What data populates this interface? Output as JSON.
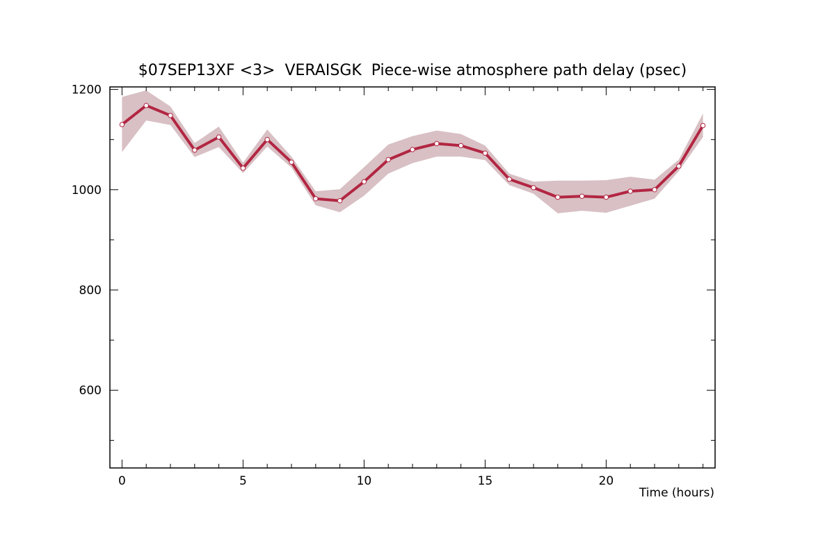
{
  "chart_data": {
    "type": "line",
    "title": "$07SEP13XF <3>  VERAISGK  Piece-wise atmosphere path delay (psec)",
    "xlabel": "Time (hours)",
    "ylabel": "",
    "xlim": [
      -0.5,
      24.5
    ],
    "ylim": [
      445,
      1205
    ],
    "x_ticks": [
      0,
      5,
      10,
      15,
      20
    ],
    "y_ticks": [
      600,
      800,
      1000,
      1200
    ],
    "x_minor_step": 1,
    "y_minor_step": 100,
    "grid": false,
    "colors": {
      "line": "#b22642",
      "band": "#d8c0c4",
      "marker_fill": "#ffffff"
    },
    "series": [
      {
        "x": [
          0,
          1,
          2,
          3,
          4,
          5,
          6,
          7,
          8,
          9,
          10,
          11,
          12,
          13,
          14,
          15,
          16,
          17,
          18,
          19,
          20,
          21,
          22,
          23,
          24
        ],
        "y": [
          1130,
          1168,
          1148,
          1079,
          1105,
          1043,
          1100,
          1055,
          982,
          978,
          1016,
          1060,
          1080,
          1092,
          1088,
          1073,
          1021,
          1004,
          985,
          987,
          985,
          997,
          1000,
          1047,
          1128
        ],
        "y_upper": [
          1185,
          1198,
          1166,
          1093,
          1126,
          1054,
          1120,
          1066,
          997,
          1001,
          1045,
          1090,
          1107,
          1118,
          1111,
          1088,
          1032,
          1016,
          1018,
          1018,
          1019,
          1026,
          1020,
          1060,
          1152
        ],
        "y_lower": [
          1075,
          1138,
          1129,
          1065,
          1085,
          1033,
          1086,
          1044,
          969,
          955,
          988,
          1032,
          1053,
          1066,
          1066,
          1059,
          1009,
          992,
          953,
          958,
          954,
          968,
          982,
          1037,
          1105
        ]
      }
    ]
  }
}
